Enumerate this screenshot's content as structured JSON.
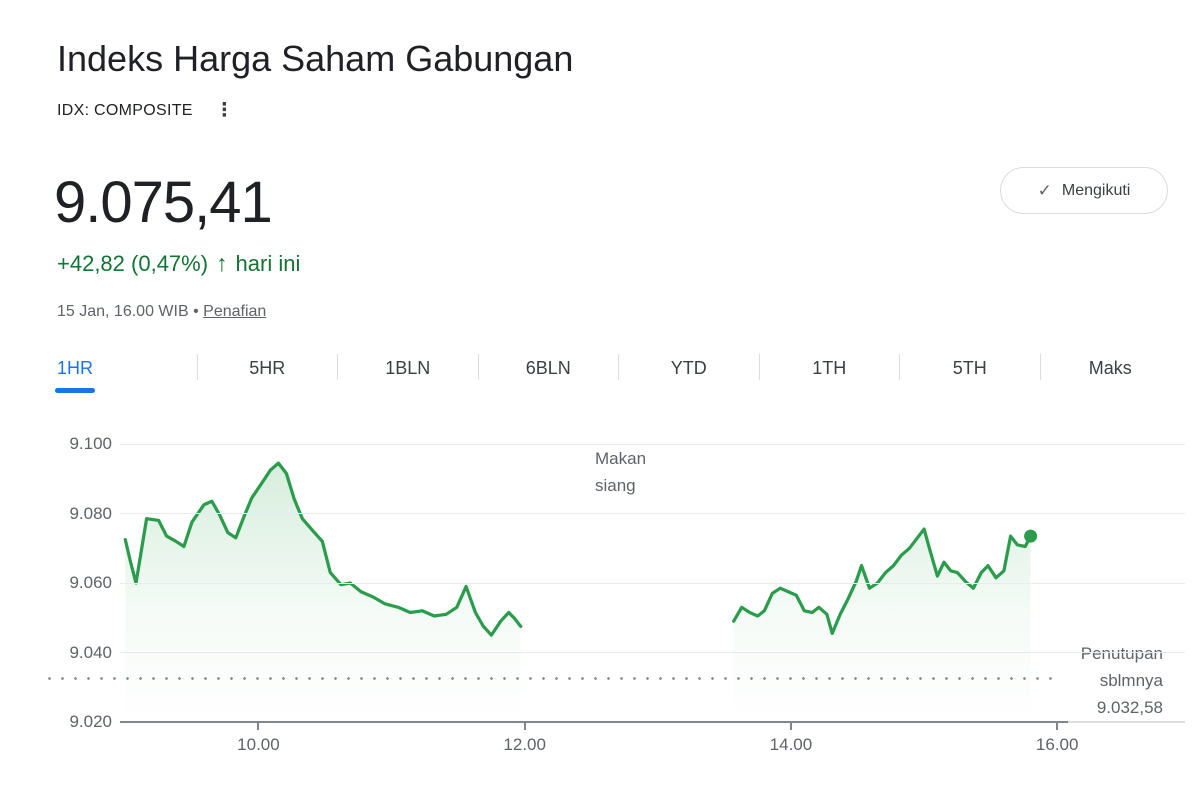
{
  "header": {
    "title": "Indeks Harga Saham Gabungan",
    "exchange": "IDX: COMPOSITE",
    "menu_icon": "⋮",
    "price": "9.075,41",
    "change": "+42,82 (0,47%)",
    "change_arrow": "↑",
    "change_suffix": "hari ini",
    "timestamp": "15 Jan, 16.00 WIB",
    "bullet": "•",
    "disclaimer_link": "Penafian",
    "follow_button": {
      "check": "✓",
      "label": "Mengikuti"
    }
  },
  "tabs": [
    {
      "label": "1HR",
      "active": true
    },
    {
      "label": "5HR",
      "active": false
    },
    {
      "label": "1BLN",
      "active": false
    },
    {
      "label": "6BLN",
      "active": false
    },
    {
      "label": "YTD",
      "active": false
    },
    {
      "label": "1TH",
      "active": false
    },
    {
      "label": "5TH",
      "active": false
    },
    {
      "label": "Maks",
      "active": false
    }
  ],
  "colors": {
    "line_green": "#2b9c4c",
    "fill_green": "rgba(52,168,83,0.22)",
    "text_green": "#137333",
    "tab_active_blue": "#1a73e8",
    "axis_gray": "#80868b",
    "gridline_gray": "#e8eaed"
  },
  "chart_data": {
    "type": "area",
    "title": "IDX Composite intraday (1HR view)",
    "legend": "none",
    "grid": "horizontal",
    "x_axis": {
      "ticks": [
        "10.00",
        "12.00",
        "14.00",
        "16.00"
      ],
      "values": [
        10,
        12,
        14,
        16
      ],
      "domain": [
        8.96,
        16.96
      ],
      "unit": "WIB hour"
    },
    "y_axis": {
      "ticks": [
        "9.100",
        "9.080",
        "9.060",
        "9.040",
        "9.020"
      ],
      "values": [
        9100,
        9080,
        9060,
        9040,
        9020
      ],
      "domain": [
        9020,
        9100
      ]
    },
    "series": [
      {
        "name": "Indeks Harga Saham Gabungan",
        "segments": [
          [
            [
              9.0,
              9072.5
            ],
            [
              9.04,
              9066
            ],
            [
              9.08,
              9060
            ],
            [
              9.16,
              9078.5
            ],
            [
              9.25,
              9078
            ],
            [
              9.31,
              9073.5
            ],
            [
              9.38,
              9072
            ],
            [
              9.44,
              9070.5
            ],
            [
              9.5,
              9077.5
            ],
            [
              9.59,
              9082.5
            ],
            [
              9.65,
              9083.5
            ],
            [
              9.71,
              9079.5
            ],
            [
              9.77,
              9074.5
            ],
            [
              9.83,
              9073
            ],
            [
              9.89,
              9079
            ],
            [
              9.95,
              9084.5
            ],
            [
              10.03,
              9089
            ],
            [
              10.09,
              9092.5
            ],
            [
              10.15,
              9094.5
            ],
            [
              10.21,
              9091.5
            ],
            [
              10.27,
              9084
            ],
            [
              10.33,
              9078.5
            ],
            [
              10.41,
              9075
            ],
            [
              10.48,
              9072
            ],
            [
              10.54,
              9063
            ],
            [
              10.62,
              9059.5
            ],
            [
              10.69,
              9060
            ],
            [
              10.77,
              9057.5
            ],
            [
              10.86,
              9056
            ],
            [
              10.95,
              9054
            ],
            [
              11.05,
              9053
            ],
            [
              11.14,
              9051.5
            ],
            [
              11.23,
              9052
            ],
            [
              11.32,
              9050.5
            ],
            [
              11.41,
              9051
            ],
            [
              11.49,
              9053
            ],
            [
              11.56,
              9059
            ],
            [
              11.63,
              9051.5
            ],
            [
              11.69,
              9047.5
            ],
            [
              11.75,
              9045
            ],
            [
              11.82,
              9049
            ],
            [
              11.88,
              9051.5
            ],
            [
              11.92,
              9050
            ],
            [
              11.97,
              9047.5
            ]
          ],
          [
            [
              13.57,
              9049
            ],
            [
              13.63,
              9053
            ],
            [
              13.69,
              9051.5
            ],
            [
              13.75,
              9050.5
            ],
            [
              13.8,
              9052
            ],
            [
              13.86,
              9057
            ],
            [
              13.92,
              9058.5
            ],
            [
              13.98,
              9057.5
            ],
            [
              14.04,
              9056.5
            ],
            [
              14.1,
              9052
            ],
            [
              14.16,
              9051.5
            ],
            [
              14.21,
              9053
            ],
            [
              14.27,
              9051
            ],
            [
              14.31,
              9045.5
            ],
            [
              14.37,
              9051
            ],
            [
              14.43,
              9055.5
            ],
            [
              14.49,
              9060.5
            ],
            [
              14.53,
              9065
            ],
            [
              14.59,
              9058.5
            ],
            [
              14.65,
              9060
            ],
            [
              14.71,
              9063
            ],
            [
              14.77,
              9065
            ],
            [
              14.83,
              9068
            ],
            [
              14.89,
              9070
            ],
            [
              14.95,
              9073
            ],
            [
              15.0,
              9075.5
            ],
            [
              15.04,
              9070
            ],
            [
              15.1,
              9062
            ],
            [
              15.15,
              9066
            ],
            [
              15.2,
              9063.5
            ],
            [
              15.25,
              9063
            ],
            [
              15.31,
              9060.5
            ],
            [
              15.37,
              9058.5
            ],
            [
              15.43,
              9063
            ],
            [
              15.48,
              9065
            ],
            [
              15.54,
              9061.5
            ],
            [
              15.6,
              9063.5
            ],
            [
              15.65,
              9073.5
            ],
            [
              15.7,
              9071
            ],
            [
              15.76,
              9070.5
            ],
            [
              15.8,
              9073.5
            ]
          ]
        ]
      }
    ],
    "annotations": {
      "lunch_lines": [
        "Makan",
        "siang"
      ],
      "prev_close": {
        "label_lines": [
          "Penutupan",
          "sblmnya",
          "9.032,58"
        ],
        "value": 9032.58
      }
    }
  }
}
